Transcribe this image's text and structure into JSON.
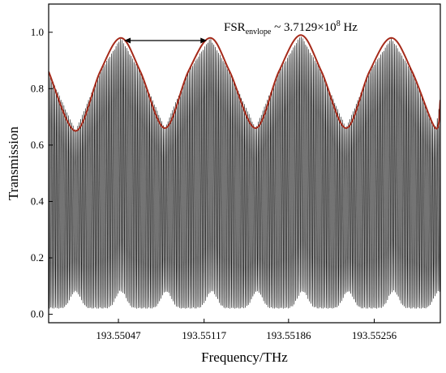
{
  "chart_data": {
    "type": "line",
    "xlabel": "Frequency/THz",
    "ylabel": "Transmission",
    "xlim": [
      193.5499,
      193.5531
    ],
    "ylim": [
      -0.03,
      1.1
    ],
    "x_ticks": [
      193.55047,
      193.55117,
      193.55186,
      193.55256
    ],
    "x_tick_labels": [
      "193.55047",
      "193.55117",
      "193.55186",
      "193.55256"
    ],
    "y_ticks": [
      0.0,
      0.2,
      0.4,
      0.6,
      0.8,
      1.0
    ],
    "y_tick_labels": [
      "0.0",
      "0.2",
      "0.4",
      "0.6",
      "0.8",
      "1.0"
    ],
    "grid": false,
    "annotation": {
      "prefix": "FSR",
      "subscript": "envlope",
      "middle": " ~ 3.7129×10",
      "superscript": "8",
      "suffix": " Hz"
    },
    "series": [
      {
        "role": "fine comb transmission",
        "color": "#000000",
        "envelope_period_thz": 0.00037129,
        "fine_period_thz": 1.25e-05,
        "max": 0.99,
        "min": 0.0
      },
      {
        "role": "upper envelope",
        "color": "#a52a1a",
        "x": [
          193.5499,
          193.55012,
          193.55032,
          193.55049,
          193.55065,
          193.55085,
          193.55104,
          193.55122,
          193.55138,
          193.55159,
          193.55178,
          193.55196,
          193.55213,
          193.55233,
          193.55252,
          193.5527,
          193.55287,
          193.55306,
          193.5531
        ],
        "y": [
          0.86,
          0.65,
          0.86,
          0.98,
          0.86,
          0.66,
          0.86,
          0.98,
          0.86,
          0.66,
          0.86,
          0.99,
          0.86,
          0.66,
          0.86,
          0.98,
          0.86,
          0.66,
          0.76
        ]
      }
    ]
  }
}
